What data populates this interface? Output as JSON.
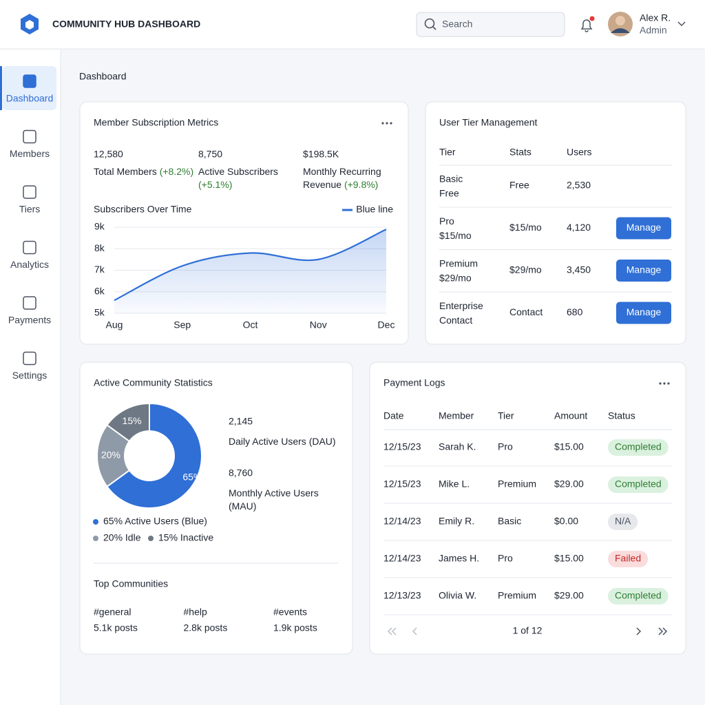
{
  "header": {
    "title": "COMMUNITY HUB DASHBOARD",
    "search_placeholder": "Search",
    "user": {
      "name": "Alex R.",
      "role": "Admin"
    }
  },
  "nav": [
    "Dashboard",
    "Members",
    "Tiers",
    "Analytics",
    "Payments",
    "Settings"
  ],
  "page_title": "Dashboard",
  "metrics": {
    "title": "Member Subscription Metrics",
    "stats": [
      {
        "value": "12,580",
        "label": "Total Members",
        "change": "(+8.2%)"
      },
      {
        "value": "8,750",
        "label": "Active Subscribers",
        "change": "(+5.1%)"
      },
      {
        "value": "$198.5K",
        "label": "Monthly Recurring Revenue",
        "change": "(+9.8%)"
      }
    ]
  },
  "chart_data": [
    {
      "type": "line",
      "title": "Subscribers Over Time",
      "categories": [
        "Aug",
        "Sep",
        "Oct",
        "Nov",
        "Dec"
      ],
      "series": [
        {
          "name": "Blue line",
          "color": "#2f6fd6",
          "values": [
            5600,
            7200,
            7800,
            7500,
            8900
          ]
        }
      ],
      "ylim": [
        5000,
        9000
      ],
      "yticks": [
        {
          "value": 9000,
          "label": "9k"
        },
        {
          "value": 8000,
          "label": "8k"
        },
        {
          "value": 7000,
          "label": "7k"
        },
        {
          "value": 6000,
          "label": "6k"
        },
        {
          "value": 5000,
          "label": "5k"
        }
      ],
      "grid": true
    },
    {
      "type": "pie",
      "categories": [
        "65% Active Users (Blue)",
        "20% Idle",
        "15% Inactive"
      ],
      "values": [
        65,
        20,
        15
      ],
      "value_labels": [
        "65%",
        "20%",
        "15%"
      ],
      "colors": [
        "#2f6fd6",
        "#8f9aa8",
        "#6e7884"
      ]
    }
  ],
  "tiers": {
    "title": "User Tier Management",
    "headers": [
      "Tier",
      "Stats",
      "Users"
    ],
    "rows": [
      {
        "tier": "Basic",
        "detail": "Free",
        "stats": "Free",
        "users": "2,530"
      },
      {
        "tier": "Pro",
        "detail": "$15/mo",
        "stats": "$15/mo",
        "users": "4,120",
        "action": "Manage"
      },
      {
        "tier": "Premium",
        "detail": "$29/mo",
        "stats": "$29/mo",
        "users": "3,450",
        "action": "Manage"
      },
      {
        "tier": "Enterprise",
        "detail": "Contact",
        "stats": "Contact",
        "users": "680",
        "action": "Manage"
      }
    ]
  },
  "community": {
    "title": "Active Community Statistics",
    "kpis": [
      {
        "value": "2,145",
        "label": "Daily Active Users (DAU)"
      },
      {
        "value": "8,760",
        "label": "Monthly Active Users (MAU)"
      }
    ],
    "top_title": "Top Communities",
    "top": [
      {
        "name": "#general",
        "posts": "5.1k posts"
      },
      {
        "name": "#help",
        "posts": "2.8k posts"
      },
      {
        "name": "#events",
        "posts": "1.9k posts"
      }
    ]
  },
  "payments": {
    "title": "Payment Logs",
    "headers": [
      "Date",
      "Member",
      "Tier",
      "Amount",
      "Status"
    ],
    "rows": [
      [
        "12/15/23",
        "Sarah K.",
        "Pro",
        "$15.00",
        "Completed"
      ],
      [
        "12/15/23",
        "Mike L.",
        "Premium",
        "$29.00",
        "Completed"
      ],
      [
        "12/14/23",
        "Emily R.",
        "Basic",
        "$0.00",
        "N/A"
      ],
      [
        "12/14/23",
        "James H.",
        "Pro",
        "$15.00",
        "Failed"
      ],
      [
        "12/13/23",
        "Olivia W.",
        "Premium",
        "$29.00",
        "Completed"
      ]
    ],
    "pagination": "1 of 12"
  }
}
